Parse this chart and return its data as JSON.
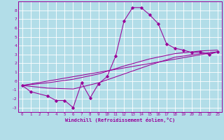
{
  "xlabel": "Windchill (Refroidissement éolien,°C)",
  "xlim": [
    -0.5,
    23.5
  ],
  "ylim": [
    -3.5,
    9.0
  ],
  "xticks": [
    0,
    1,
    2,
    3,
    4,
    5,
    6,
    7,
    8,
    9,
    10,
    11,
    12,
    13,
    14,
    15,
    16,
    17,
    18,
    19,
    20,
    21,
    22,
    23
  ],
  "yticks": [
    -3,
    -2,
    -1,
    0,
    1,
    2,
    3,
    4,
    5,
    6,
    7,
    8
  ],
  "bg_color": "#b2dde8",
  "line_color": "#990099",
  "grid_color": "#ffffff",
  "series1_x": [
    0,
    1,
    3,
    4,
    5,
    6,
    7,
    8,
    9,
    10,
    11,
    12,
    13,
    14,
    15,
    16,
    17,
    18,
    19,
    20,
    21,
    22,
    23
  ],
  "series1_y": [
    -0.5,
    -1.2,
    -1.7,
    -2.2,
    -2.2,
    -3.0,
    -0.2,
    -1.9,
    -0.3,
    0.5,
    2.8,
    6.8,
    8.3,
    8.3,
    7.5,
    6.5,
    4.2,
    3.7,
    3.5,
    3.2,
    3.3,
    3.0,
    3.3
  ],
  "series2_x": [
    0,
    3,
    6,
    9,
    12,
    15,
    18,
    21,
    23
  ],
  "series2_y": [
    -0.5,
    -0.2,
    0.2,
    0.8,
    1.7,
    2.5,
    3.1,
    3.4,
    3.5
  ],
  "series3_x": [
    0,
    3,
    6,
    9,
    12,
    15,
    18,
    21,
    23
  ],
  "series3_y": [
    -0.5,
    -0.8,
    -0.9,
    -0.2,
    0.8,
    1.8,
    2.7,
    3.1,
    3.3
  ],
  "series4_x": [
    0,
    23
  ],
  "series4_y": [
    -0.5,
    3.3
  ]
}
